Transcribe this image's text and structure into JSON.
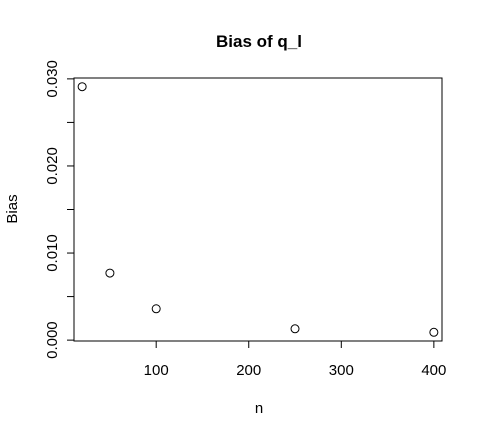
{
  "chart_data": {
    "type": "scatter",
    "title": "Bias of q_l",
    "xlabel": "n",
    "ylabel": "Bias",
    "x": [
      20,
      50,
      100,
      250,
      400
    ],
    "y": [
      0.0291,
      0.0077,
      0.0036,
      0.0013,
      0.0009
    ],
    "xlim": [
      11.2,
      408.8
    ],
    "ylim": [
      -0.0001,
      0.0301
    ],
    "xticks": [
      100,
      200,
      300,
      400
    ],
    "xtick_labels": [
      "100",
      "200",
      "300",
      "400"
    ],
    "yticks": [
      0.0,
      0.01,
      0.02,
      0.03
    ],
    "ytick_labels": [
      "0.000",
      "0.010",
      "0.020",
      "0.030"
    ],
    "grid": false,
    "marker": "open-circle"
  }
}
